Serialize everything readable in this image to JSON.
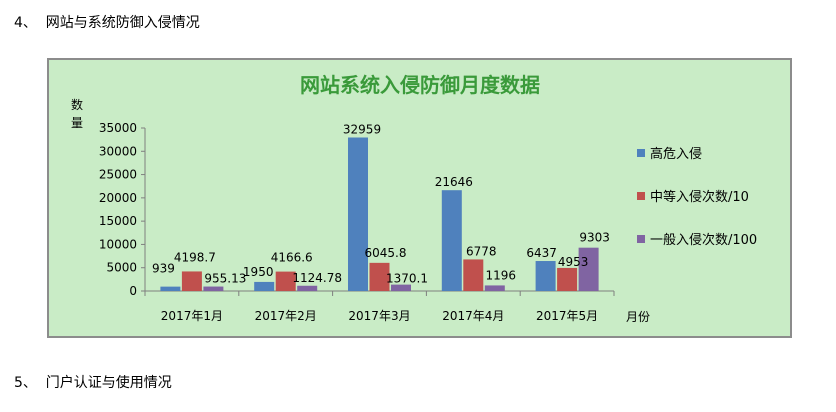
{
  "headings": {
    "top": "4、  网站与系统防御入侵情况",
    "bottom": "5、  门户认证与使用情况"
  },
  "colors": {
    "plot_background": "#c9ecc6",
    "title": "#3a9a3a",
    "series": [
      "#4f81bd",
      "#c0504d",
      "#8064a2"
    ]
  },
  "chart_data": {
    "type": "bar",
    "title": "网站系统入侵防御月度数据",
    "ylabel": "数量",
    "xlabel": "月份",
    "categories": [
      "2017年1月",
      "2017年2月",
      "2017年3月",
      "2017年4月",
      "2017年5月"
    ],
    "ylim": [
      0,
      35000
    ],
    "yticks": [
      0,
      5000,
      10000,
      15000,
      20000,
      25000,
      30000,
      35000
    ],
    "legend_position": "right",
    "series": [
      {
        "name": "高危入侵",
        "values": [
          939,
          1950,
          32959,
          21646,
          6437
        ],
        "labels": [
          "939",
          "1950",
          "32959",
          "21646",
          "6437"
        ]
      },
      {
        "name": "中等入侵次数/10",
        "values": [
          4198.7,
          4166.6,
          6045.8,
          6778,
          4953
        ],
        "labels": [
          "4198.7",
          "4166.6",
          "6045.8",
          "6778",
          "4953"
        ]
      },
      {
        "name": "一般入侵次数/100",
        "values": [
          955.13,
          1124.78,
          1370.1,
          1196,
          9303
        ],
        "labels": [
          "955.13",
          "1124.78",
          "1370.1",
          "1196",
          "9303"
        ]
      }
    ]
  }
}
